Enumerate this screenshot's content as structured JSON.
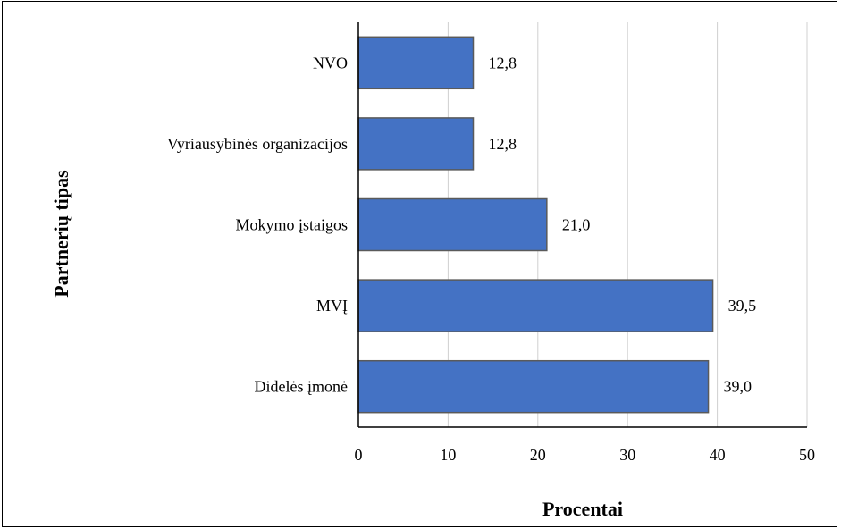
{
  "chart_data": {
    "type": "bar",
    "orientation": "horizontal",
    "categories": [
      "NVO",
      "Vyriausybinės organizacijos",
      "Mokymo įstaigos",
      "MVĮ",
      "Didelės įmonė"
    ],
    "values": [
      12.8,
      12.8,
      21.0,
      39.5,
      39.0
    ],
    "value_labels": [
      "12,8",
      "12,8",
      "21,0",
      "39,5",
      "39,0"
    ],
    "xlim": [
      0,
      50
    ],
    "xticks": [
      0,
      10,
      20,
      30,
      40,
      50
    ],
    "xlabel": "Procentai",
    "ylabel": "Partnerių tipas",
    "grid": "vertical",
    "bar_color": "#4472C4",
    "bar_edge_color": "#5a5a5a"
  }
}
